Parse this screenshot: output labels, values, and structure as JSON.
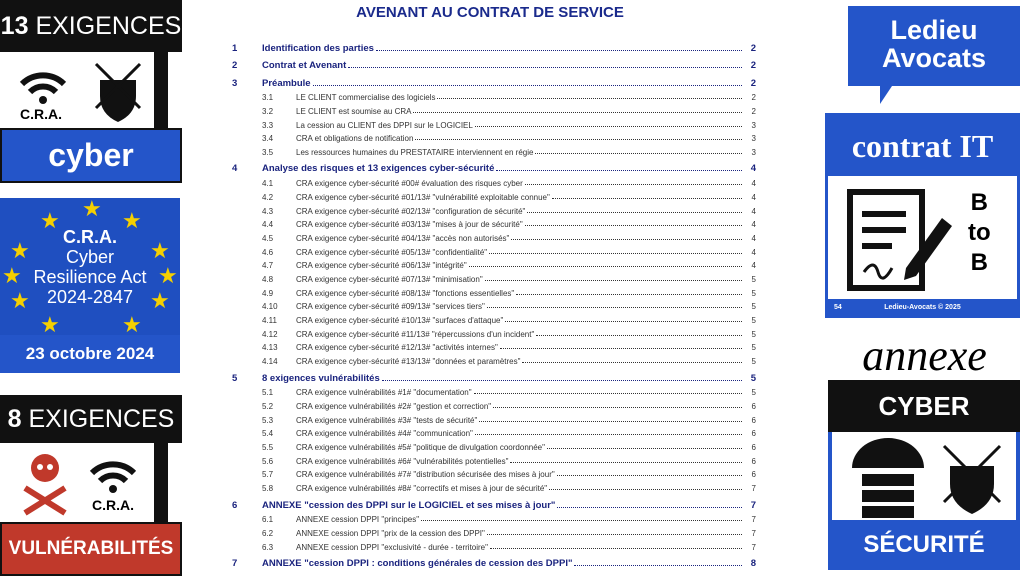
{
  "left": {
    "top_badge_num": "13",
    "top_badge_label": "EXIGENCES",
    "cra_label": "C.R.A.",
    "cyber": "cyber",
    "eu_lines": [
      "C.R.A.",
      "Cyber",
      "Resilience Act",
      "2024-2847"
    ],
    "date": "23 octobre 2024",
    "bottom_badge_num": "8",
    "bottom_badge_label": "EXIGENCES",
    "cra_label2": "C.R.A.",
    "vuln": "VULNÉRABILITÉS"
  },
  "title": "AVENANT AU CONTRAT DE SERVICE",
  "toc": [
    {
      "level": 1,
      "num": "1",
      "text": "Identification des parties",
      "page": "2"
    },
    {
      "level": 1,
      "num": "2",
      "text": "Contrat et Avenant",
      "page": "2"
    },
    {
      "level": 1,
      "num": "3",
      "text": "Préambule",
      "page": "2"
    },
    {
      "level": 2,
      "num": "3.1",
      "text": "LE CLIENT commercialise des logiciels",
      "page": "2"
    },
    {
      "level": 2,
      "num": "3.2",
      "text": "LE CLIENT est soumise au CRA",
      "page": "2"
    },
    {
      "level": 2,
      "num": "3.3",
      "text": "La cession au CLIENT des DPPI sur le LOGICIEL",
      "page": "3"
    },
    {
      "level": 2,
      "num": "3.4",
      "text": "CRA et obligations de notification",
      "page": "3"
    },
    {
      "level": 2,
      "num": "3.5",
      "text": "Les ressources humaines du PRESTATAIRE interviennent en régie",
      "page": "3"
    },
    {
      "level": 1,
      "num": "4",
      "text": "Analyse des risques et 13 exigences cyber-sécurité",
      "page": "4"
    },
    {
      "level": 2,
      "num": "4.1",
      "text": "CRA exigence cyber-sécurité #00# évaluation des risques cyber",
      "page": "4"
    },
    {
      "level": 2,
      "num": "4.2",
      "text": "CRA exigence cyber-sécurité #01/13# \"vulnérabilité exploitable connue\"",
      "page": "4"
    },
    {
      "level": 2,
      "num": "4.3",
      "text": "CRA exigence cyber-sécurité #02/13# \"configuration de sécurité\"",
      "page": "4"
    },
    {
      "level": 2,
      "num": "4.4",
      "text": "CRA exigence cyber-sécurité #03/13# \"mises à jour de sécurité\"",
      "page": "4"
    },
    {
      "level": 2,
      "num": "4.5",
      "text": "CRA exigence cyber-sécurité #04/13# \"accès non autorisés\"",
      "page": "4"
    },
    {
      "level": 2,
      "num": "4.6",
      "text": "CRA exigence cyber-sécurité #05/13# \"confidentialité\"",
      "page": "4"
    },
    {
      "level": 2,
      "num": "4.7",
      "text": "CRA exigence cyber-sécurité #06/13# \"intégrité\"",
      "page": "4"
    },
    {
      "level": 2,
      "num": "4.8",
      "text": "CRA exigence cyber-sécurité #07/13# \"minimisation\"",
      "page": "5"
    },
    {
      "level": 2,
      "num": "4.9",
      "text": "CRA exigence cyber-sécurité #08/13# \"fonctions essentielles\"",
      "page": "5"
    },
    {
      "level": 2,
      "num": "4.10",
      "text": "CRA exigence cyber-sécurité #09/13# \"services tiers\"",
      "page": "5"
    },
    {
      "level": 2,
      "num": "4.11",
      "text": "CRA exigence cyber-sécurité #10/13# \"surfaces d'attaque\"",
      "page": "5"
    },
    {
      "level": 2,
      "num": "4.12",
      "text": "CRA exigence cyber-sécurité #11/13# \"répercussions d'un incident\"",
      "page": "5"
    },
    {
      "level": 2,
      "num": "4.13",
      "text": "CRA exigence cyber-sécurité #12/13# \"activités internes\"",
      "page": "5"
    },
    {
      "level": 2,
      "num": "4.14",
      "text": "CRA exigence cyber-sécurité #13/13# \"données et paramètres\"",
      "page": "5"
    },
    {
      "level": 1,
      "num": "5",
      "text": "8 exigences vulnérabilités",
      "page": "5"
    },
    {
      "level": 2,
      "num": "5.1",
      "text": "CRA exigence vulnérabilités #1# \"documentation\"",
      "page": "5"
    },
    {
      "level": 2,
      "num": "5.2",
      "text": "CRA exigence vulnérabilités #2# \"gestion et correction\"",
      "page": "6"
    },
    {
      "level": 2,
      "num": "5.3",
      "text": "CRA exigence vulnérabilités #3# \"tests de sécurité\"",
      "page": "6"
    },
    {
      "level": 2,
      "num": "5.4",
      "text": "CRA exigence vulnérabilités #4# \"communication\"",
      "page": "6"
    },
    {
      "level": 2,
      "num": "5.5",
      "text": "CRA exigence vulnérabilités #5# \"politique de divulgation coordonnée\"",
      "page": "6"
    },
    {
      "level": 2,
      "num": "5.6",
      "text": "CRA exigence vulnérabilités #6# \"vulnérabilités potentielles\"",
      "page": "6"
    },
    {
      "level": 2,
      "num": "5.7",
      "text": "CRA exigence vulnérabilités #7# \"distribution sécurisée des mises à jour\"",
      "page": "6"
    },
    {
      "level": 2,
      "num": "5.8",
      "text": "CRA exigence vulnérabilités #8# \"correctifs et mises à jour de sécurité\"",
      "page": "7"
    },
    {
      "level": 1,
      "num": "6",
      "text": "ANNEXE \"cession des DPPI sur le LOGICIEL et ses mises à jour\"",
      "page": "7"
    },
    {
      "level": 2,
      "num": "6.1",
      "text": "ANNEXE cession DPPI \"principes\"",
      "page": "7"
    },
    {
      "level": 2,
      "num": "6.2",
      "text": "ANNEXE cession DPPI \"prix de la cession des DPPI\"",
      "page": "7"
    },
    {
      "level": 2,
      "num": "6.3",
      "text": "ANNEXE cession DPPI \"exclusivité - durée - territoire\"",
      "page": "7"
    },
    {
      "level": 1,
      "num": "7",
      "text": "ANNEXE \"cession DPPI : conditions générales de cession des DPPI\"",
      "page": "8"
    }
  ],
  "right": {
    "logo_line1": "Ledieu",
    "logo_line2": "Avocats",
    "contrat": "contrat IT",
    "b": "B",
    "to": "to",
    "b2": "B",
    "slide_num": "54",
    "footer": "Ledieu-Avocats ©  2025",
    "annexe": "annexe",
    "cyber": "CYBER",
    "securite": "SÉCURITÉ"
  },
  "colors": {
    "blue": "#2455c9",
    "navy": "#1a237e",
    "red": "#c0392b",
    "black": "#111111"
  }
}
